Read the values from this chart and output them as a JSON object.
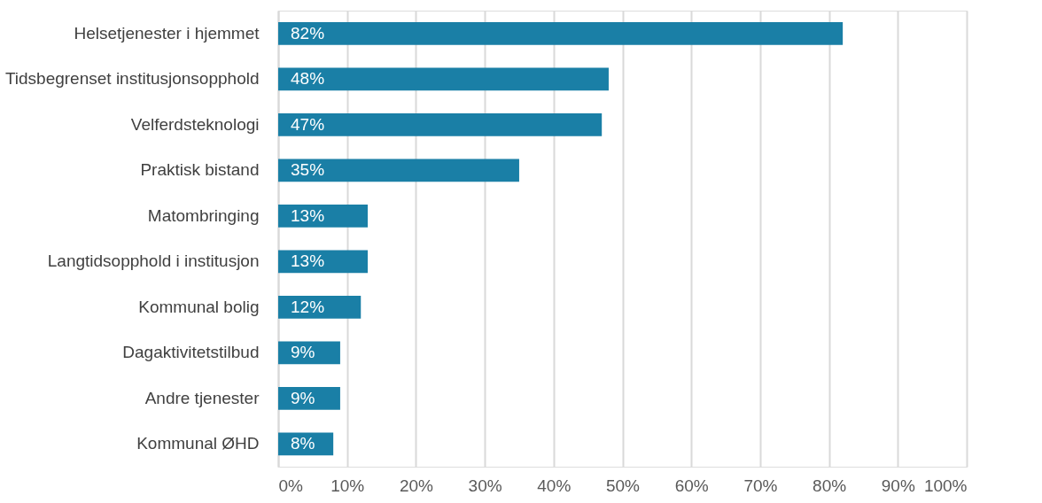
{
  "chart_data": {
    "type": "bar",
    "orientation": "horizontal",
    "categories": [
      "Helsetjenester i hjemmet",
      "Tidsbegrenset institusjonsopphold",
      "Velferdsteknologi",
      "Praktisk bistand",
      "Matombringing",
      "Langtidsopphold i institusjon",
      "Kommunal bolig",
      "Dagaktivitetstilbud",
      "Andre tjenester",
      "Kommunal ØHD"
    ],
    "values": [
      82,
      48,
      47,
      35,
      13,
      13,
      12,
      9,
      9,
      8
    ],
    "value_labels": [
      "82%",
      "48%",
      "47%",
      "35%",
      "13%",
      "13%",
      "12%",
      "9%",
      "9%",
      "8%"
    ],
    "color": "#1a7fa6",
    "xlim": [
      0,
      100
    ],
    "xticks": [
      {
        "value": 0,
        "label": "0%"
      },
      {
        "value": 10,
        "label": "10%"
      },
      {
        "value": 20,
        "label": "20%"
      },
      {
        "value": 30,
        "label": "30%"
      },
      {
        "value": 40,
        "label": "40%"
      },
      {
        "value": 50,
        "label": "50%"
      },
      {
        "value": 60,
        "label": "60%"
      },
      {
        "value": 70,
        "label": "70%"
      },
      {
        "value": 80,
        "label": "80%"
      },
      {
        "value": 90,
        "label": "90%"
      },
      {
        "value": 100,
        "label": "100%"
      }
    ],
    "grid": "x"
  }
}
